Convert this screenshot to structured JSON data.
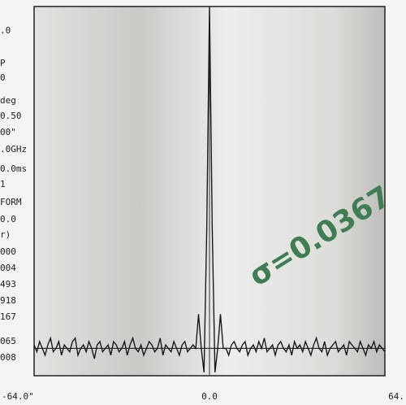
{
  "chart_data": {
    "type": "line",
    "side_labels": [
      ".0",
      "P",
      "0",
      "deg",
      "0.50",
      "00\"",
      ".0GHz",
      "0.0ms",
      "1",
      "FORM",
      "0.0",
      "r)",
      "000",
      "004",
      "493",
      "918",
      "167",
      "065",
      "008"
    ],
    "annotation": "σ=0.0367",
    "annotation_color": "#3f7d52",
    "xlim": [
      -64,
      64
    ],
    "xticks": [
      {
        "value": -64,
        "label": "-64.0\""
      },
      {
        "value": 0,
        "label": "0.0"
      },
      {
        "value": 64,
        "label": "64."
      }
    ],
    "ylim": [
      -0.08,
      1.0
    ],
    "x": [
      -64,
      -63,
      -62,
      -61,
      -60,
      -59,
      -58,
      -57,
      -56,
      -55,
      -54,
      -53,
      -52,
      -51,
      -50,
      -49,
      -48,
      -47,
      -46,
      -45,
      -44,
      -43,
      -42,
      -41,
      -40,
      -39,
      -38,
      -37,
      -36,
      -35,
      -34,
      -33,
      -32,
      -31,
      -30,
      -29,
      -28,
      -27,
      -26,
      -25,
      -24,
      -23,
      -22,
      -21,
      -20,
      -19,
      -18,
      -17,
      -16,
      -15,
      -14,
      -13,
      -12,
      -11,
      -10,
      -9,
      -8,
      -7,
      -6,
      -5,
      -4,
      -3,
      -2,
      -1,
      0,
      1,
      2,
      3,
      4,
      5,
      6,
      7,
      8,
      9,
      10,
      11,
      12,
      13,
      14,
      15,
      16,
      17,
      18,
      19,
      20,
      21,
      22,
      23,
      24,
      25,
      26,
      27,
      28,
      29,
      30,
      31,
      32,
      33,
      34,
      35,
      36,
      37,
      38,
      39,
      40,
      41,
      42,
      43,
      44,
      45,
      46,
      47,
      48,
      49,
      50,
      51,
      52,
      53,
      54,
      55,
      56,
      57,
      58,
      59,
      60,
      61,
      62,
      63,
      64
    ],
    "series": [
      {
        "color": "#1a1a1a",
        "values": [
          0.01,
          -0.01,
          0.02,
          0,
          -0.02,
          0.01,
          0.03,
          -0.01,
          0,
          0.02,
          -0.02,
          0.01,
          0,
          -0.01,
          0.02,
          0.03,
          -0.02,
          0,
          0.01,
          -0.01,
          0.02,
          0,
          -0.03,
          0.01,
          0.02,
          -0.01,
          0,
          0.01,
          -0.02,
          0.02,
          0.01,
          -0.01,
          0,
          0.02,
          -0.02,
          0.01,
          0.03,
          0,
          -0.01,
          0.01,
          -0.02,
          0,
          0.02,
          0.01,
          -0.01,
          0,
          0.03,
          -0.02,
          0.01,
          0,
          -0.01,
          0.02,
          0,
          -0.02,
          0.01,
          0.02,
          -0.01,
          0,
          0.01,
          0,
          0.1,
          0,
          -0.07,
          0.35,
          1.0,
          0.35,
          -0.07,
          0,
          0.1,
          0,
          0,
          -0.02,
          0.01,
          0.02,
          0,
          -0.01,
          0.01,
          0.02,
          -0.02,
          0,
          0.01,
          -0.01,
          0.02,
          0,
          0.03,
          -0.01,
          0,
          0.01,
          -0.02,
          0.01,
          0.02,
          0,
          -0.01,
          0.01,
          -0.02,
          0.02,
          0,
          0.01,
          -0.01,
          0.02,
          0,
          -0.02,
          0.01,
          0.03,
          0,
          -0.01,
          0.02,
          -0.02,
          0,
          0.01,
          0.02,
          -0.01,
          0,
          0.01,
          -0.02,
          0.02,
          0.01,
          0,
          -0.01,
          0.02,
          0,
          -0.02,
          0.01,
          0,
          0.02,
          -0.01,
          0.01,
          0,
          -0.01
        ]
      }
    ]
  }
}
